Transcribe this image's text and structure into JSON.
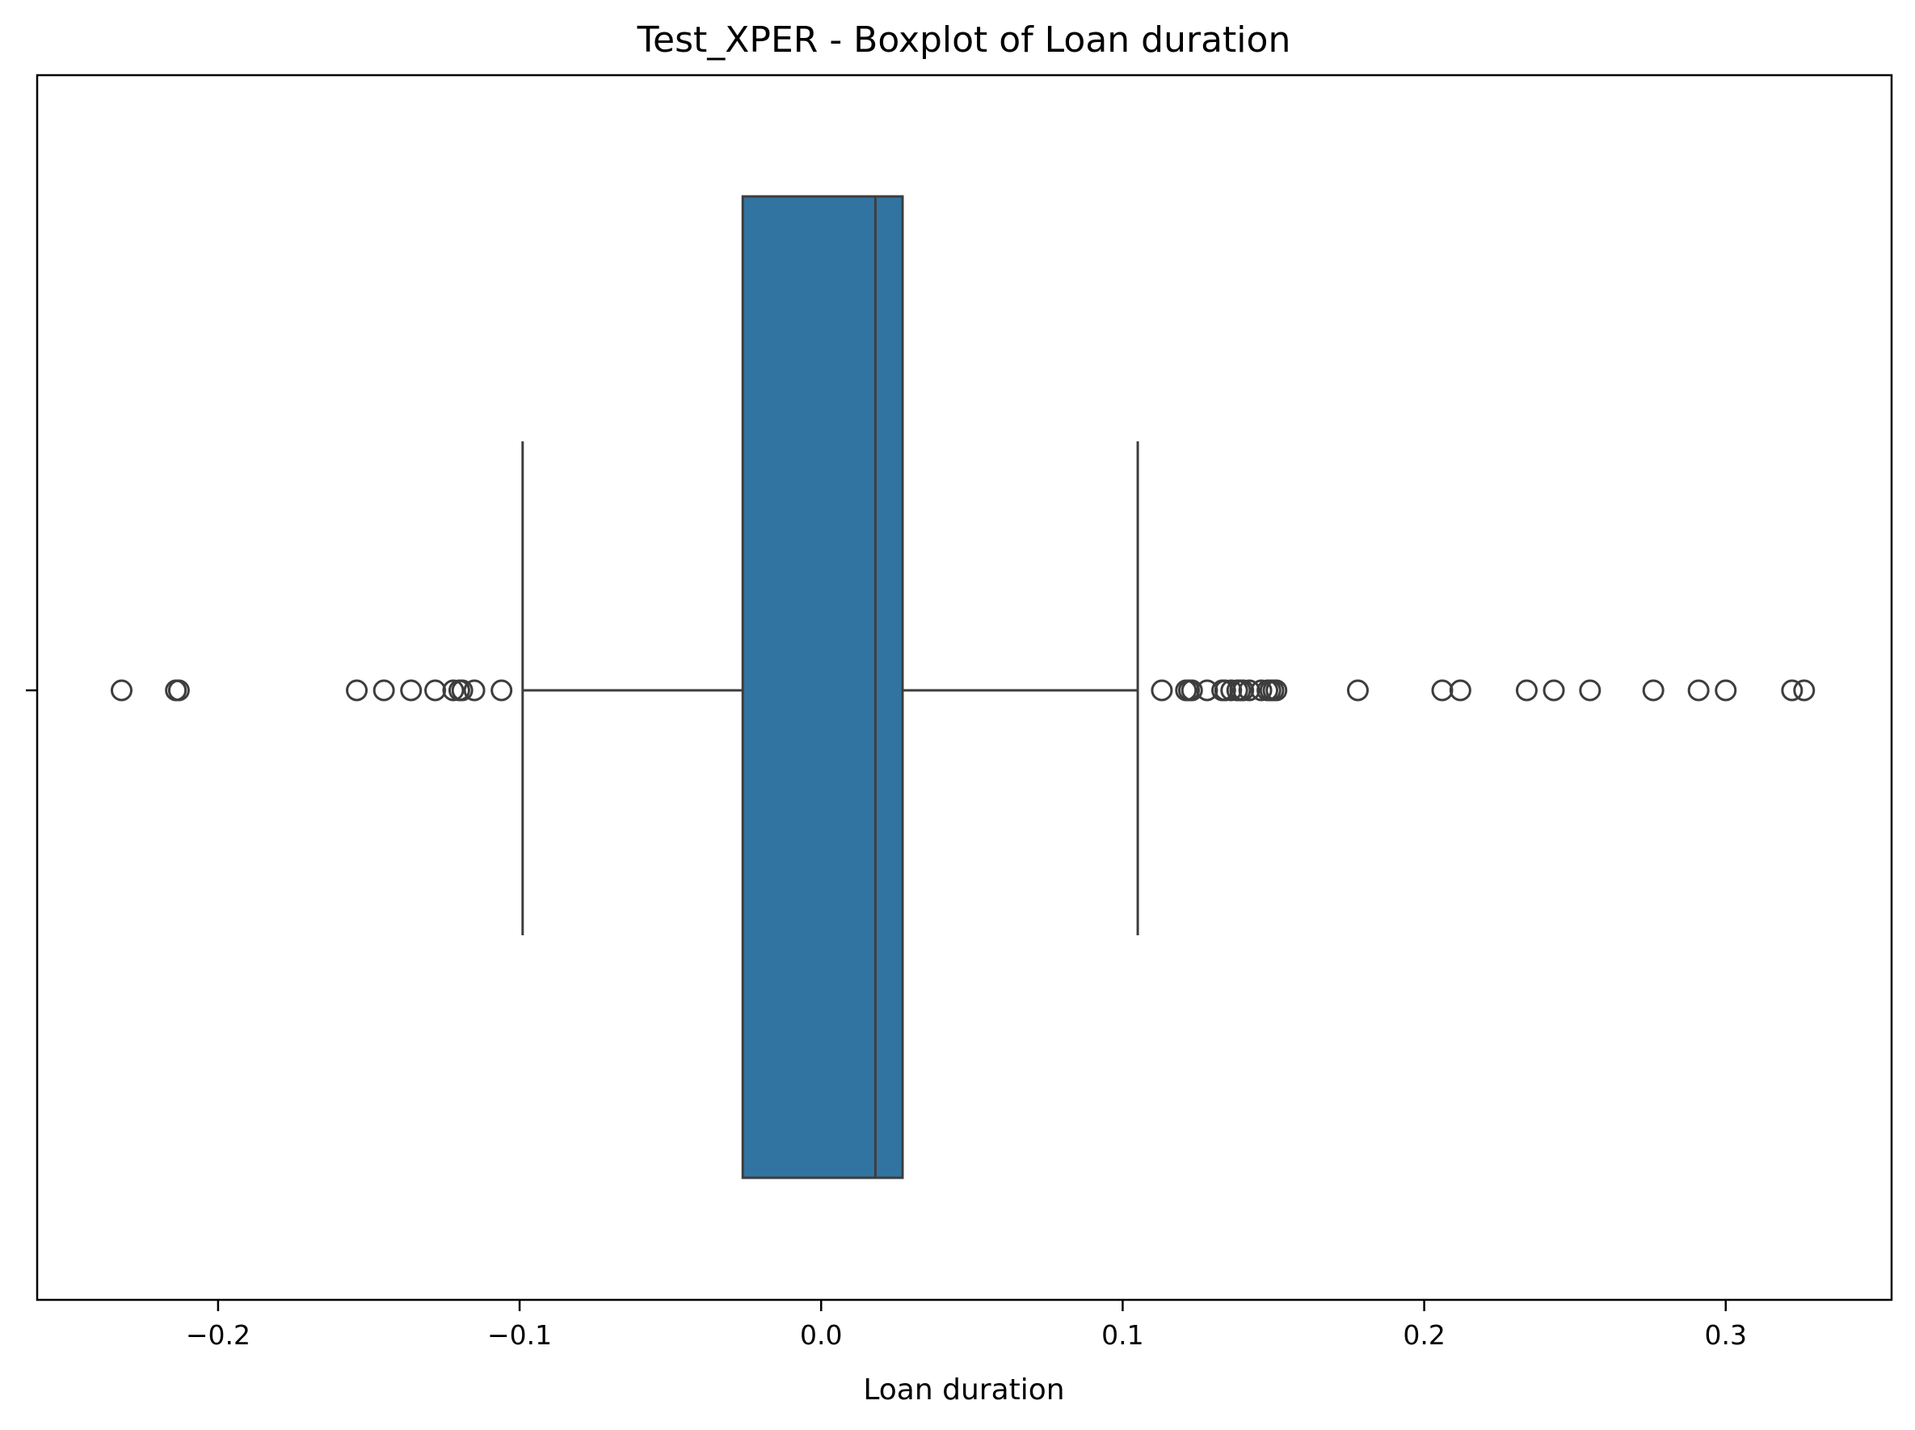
{
  "chart_data": {
    "type": "boxplot",
    "orientation": "horizontal",
    "title": "Test_XPER - Boxplot of Loan duration",
    "xlabel": "Loan duration",
    "ylabel": "",
    "xlim": [
      -0.26,
      0.355
    ],
    "x_ticks": [
      -0.2,
      -0.1,
      0.0,
      0.1,
      0.2,
      0.3
    ],
    "x_tick_labels": [
      "−0.2",
      "−0.1",
      "0.0",
      "0.1",
      "0.2",
      "0.3"
    ],
    "grid": false,
    "box": {
      "whisker_low": -0.099,
      "q1": -0.026,
      "median": 0.018,
      "q3": 0.027,
      "whisker_high": 0.105
    },
    "outliers": [
      -0.232,
      -0.214,
      -0.213,
      -0.154,
      -0.145,
      -0.136,
      -0.128,
      -0.122,
      -0.12,
      -0.119,
      -0.115,
      -0.106,
      0.113,
      0.121,
      0.122,
      0.123,
      0.128,
      0.133,
      0.134,
      0.136,
      0.138,
      0.139,
      0.14,
      0.142,
      0.146,
      0.148,
      0.149,
      0.15,
      0.151,
      0.178,
      0.206,
      0.212,
      0.234,
      0.243,
      0.255,
      0.276,
      0.291,
      0.3,
      0.322,
      0.326
    ],
    "colors": {
      "box_fill": "#3274a1",
      "line": "#3d3d3d"
    }
  }
}
